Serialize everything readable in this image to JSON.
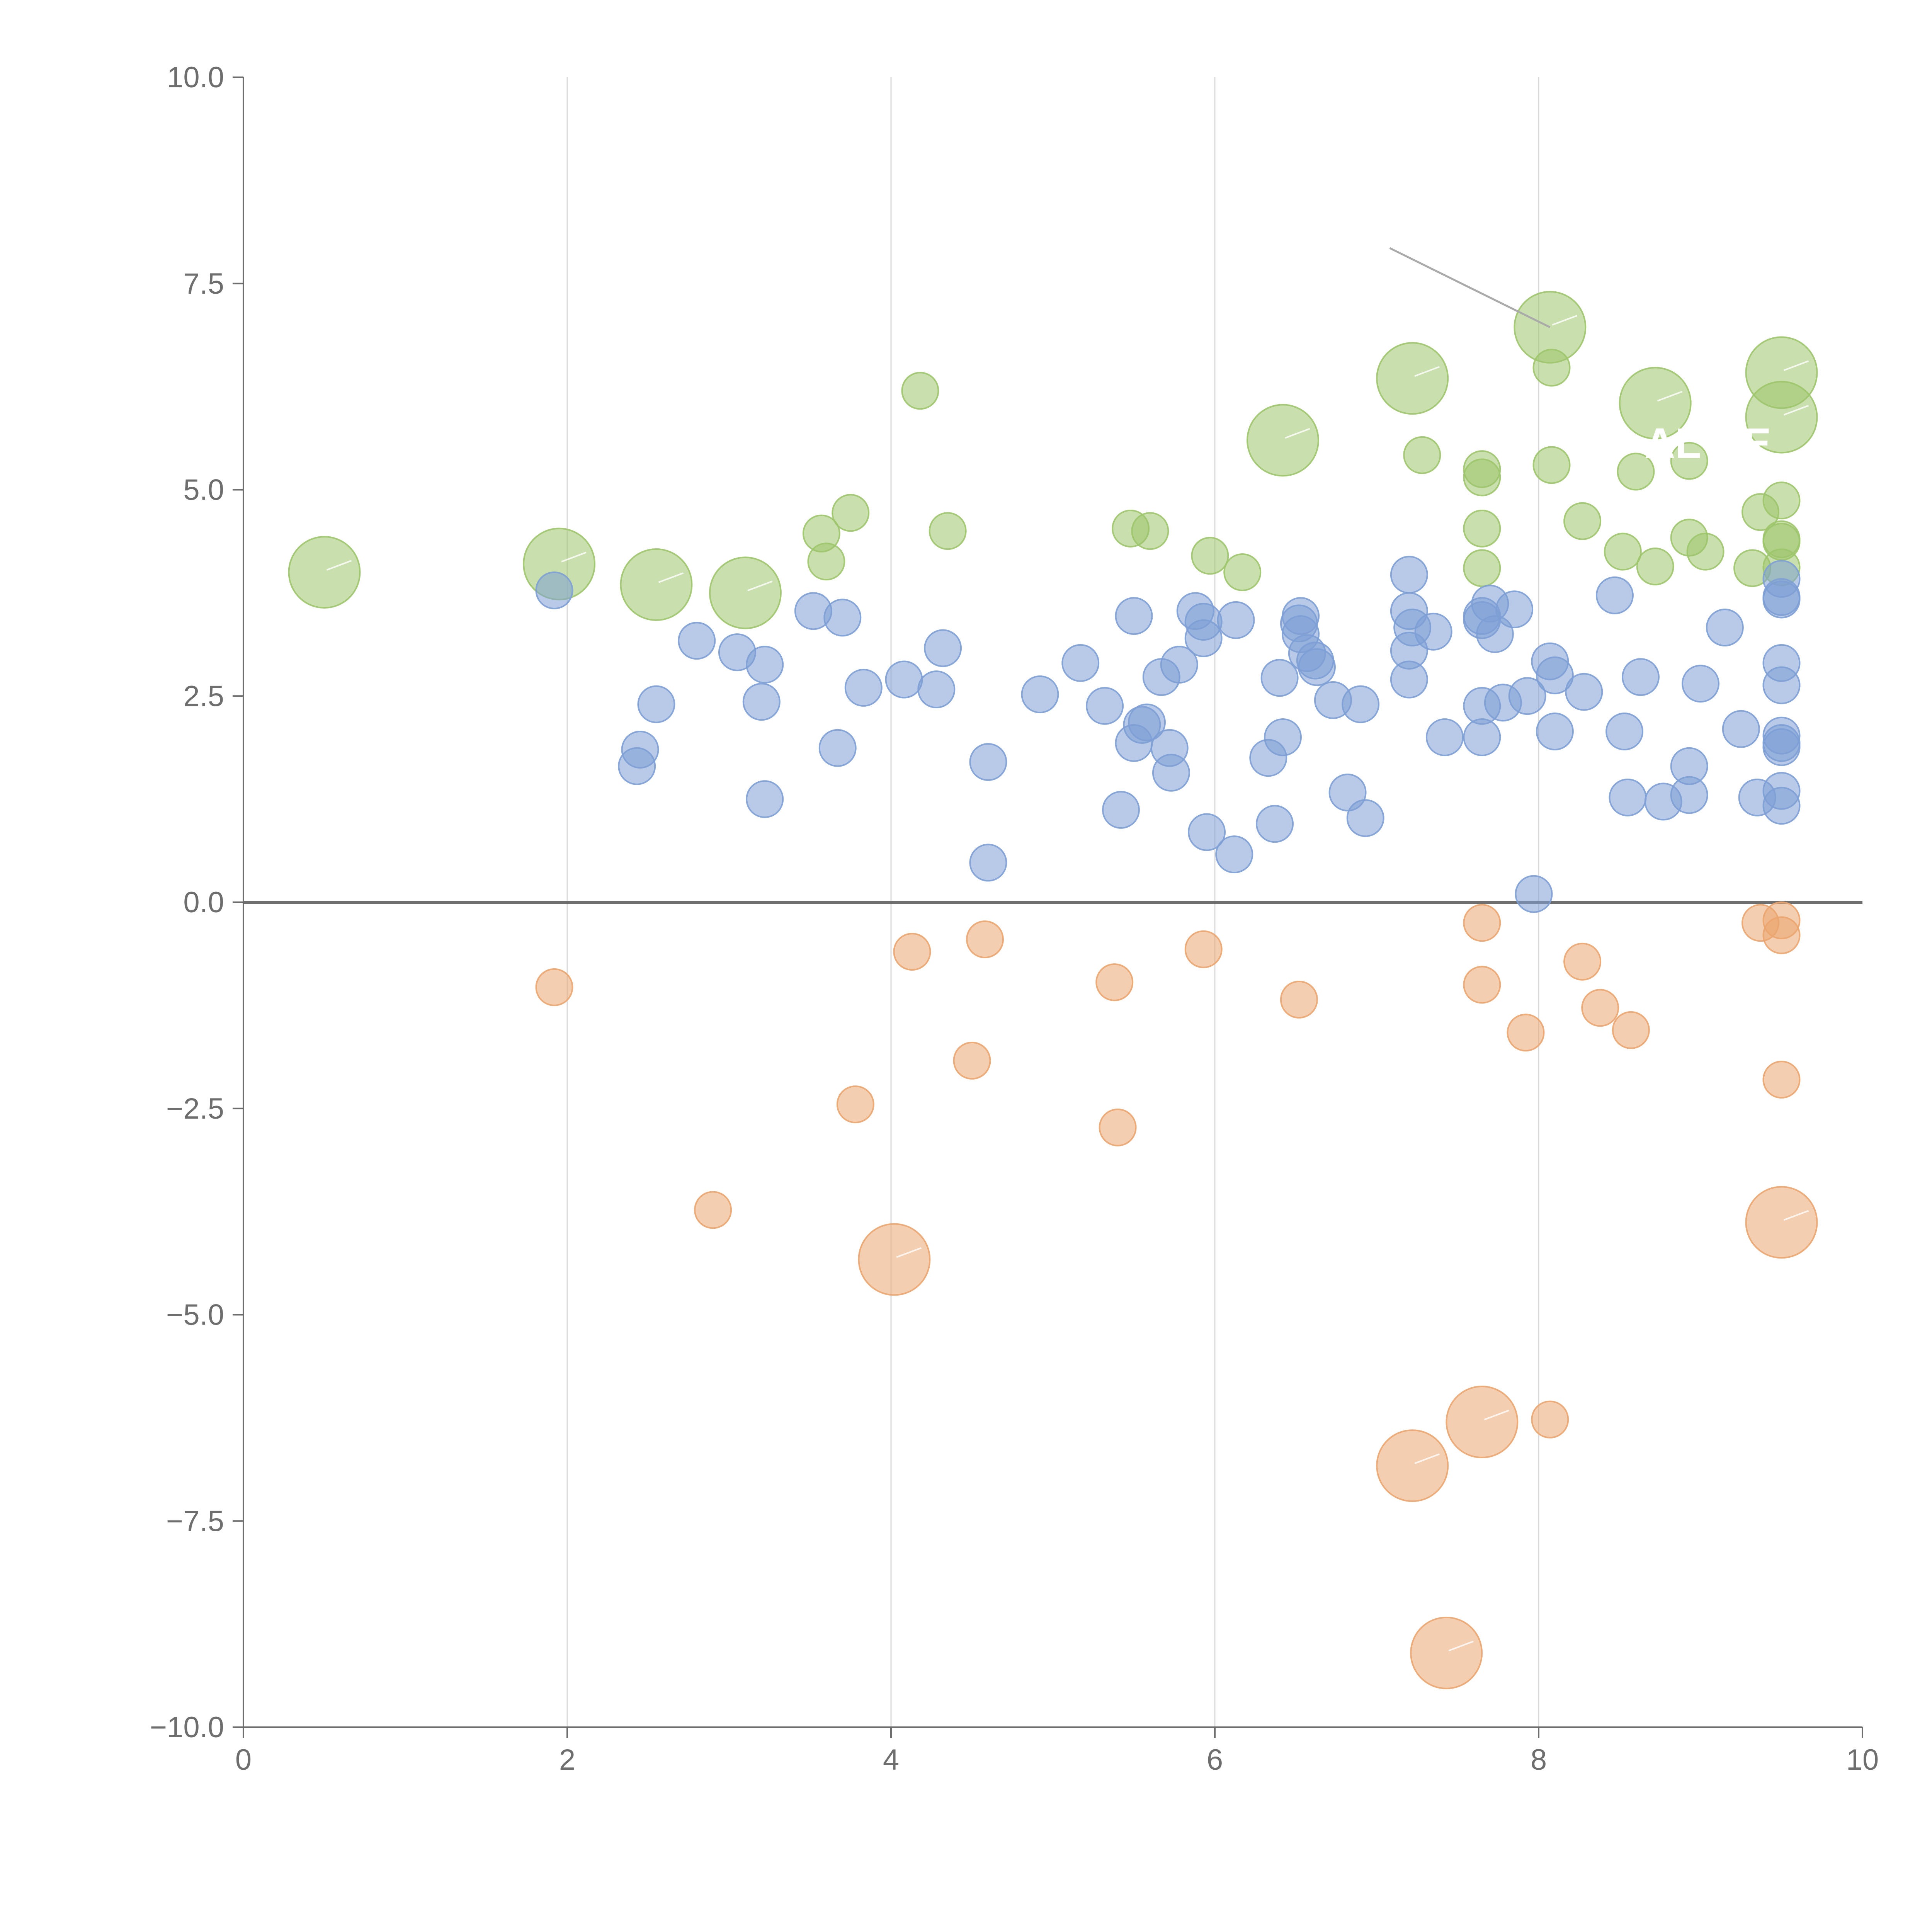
{
  "chart_data": {
    "type": "scatter",
    "variant": "bubble",
    "title": "",
    "xlabel": "",
    "ylabel": "",
    "xlim": [
      0,
      10
    ],
    "ylim": [
      -10,
      10
    ],
    "x_ticks": [
      0,
      2,
      4,
      6,
      8,
      10
    ],
    "x_tick_labels": [
      "0",
      "2",
      "4",
      "6",
      "8",
      "10"
    ],
    "y_ticks": [
      -10,
      -7.5,
      -5,
      -2.5,
      0,
      2.5,
      5,
      7.5,
      10
    ],
    "y_tick_labels": [
      "−10.0",
      "−7.5",
      "−5.0",
      "−2.5",
      "0.0",
      "2.5",
      "5.0",
      "7.5",
      "10.0"
    ],
    "vertical_grid": [
      2,
      4,
      6,
      8
    ],
    "zero_line": 0,
    "label_texts": [
      "AL CE"
    ],
    "series": [
      {
        "name": "green",
        "color": "#9dc56b",
        "points": [
          {
            "x": 0.5,
            "y": 4.0,
            "s": 3
          },
          {
            "x": 1.95,
            "y": 4.1,
            "s": 3
          },
          {
            "x": 2.55,
            "y": 3.85,
            "s": 3
          },
          {
            "x": 3.1,
            "y": 3.75,
            "s": 3
          },
          {
            "x": 6.42,
            "y": 5.6,
            "s": 3
          },
          {
            "x": 7.22,
            "y": 6.35,
            "s": 3
          },
          {
            "x": 8.07,
            "y": 6.97,
            "s": 3
          },
          {
            "x": 8.72,
            "y": 6.05,
            "s": 3
          },
          {
            "x": 9.5,
            "y": 6.42,
            "s": 3
          },
          {
            "x": 9.5,
            "y": 5.88,
            "s": 3
          },
          {
            "x": 4.18,
            "y": 6.2,
            "s": 1
          },
          {
            "x": 3.75,
            "y": 4.72,
            "s": 1
          },
          {
            "x": 3.57,
            "y": 4.47,
            "s": 1
          },
          {
            "x": 3.6,
            "y": 4.13,
            "s": 1
          },
          {
            "x": 4.35,
            "y": 4.5,
            "s": 1
          },
          {
            "x": 5.48,
            "y": 4.53,
            "s": 1
          },
          {
            "x": 5.6,
            "y": 4.5,
            "s": 1
          },
          {
            "x": 5.97,
            "y": 4.2,
            "s": 1
          },
          {
            "x": 6.17,
            "y": 4.0,
            "s": 1
          },
          {
            "x": 7.28,
            "y": 5.42,
            "s": 1
          },
          {
            "x": 7.65,
            "y": 5.25,
            "s": 1
          },
          {
            "x": 7.65,
            "y": 5.15,
            "s": 1
          },
          {
            "x": 7.65,
            "y": 4.53,
            "s": 1
          },
          {
            "x": 7.65,
            "y": 4.05,
            "s": 1
          },
          {
            "x": 8.08,
            "y": 6.48,
            "s": 1
          },
          {
            "x": 8.08,
            "y": 5.3,
            "s": 1
          },
          {
            "x": 8.27,
            "y": 4.62,
            "s": 1
          },
          {
            "x": 8.52,
            "y": 4.25,
            "s": 1
          },
          {
            "x": 8.6,
            "y": 5.22,
            "s": 1
          },
          {
            "x": 8.72,
            "y": 4.07,
            "s": 1
          },
          {
            "x": 8.93,
            "y": 5.35,
            "s": 1
          },
          {
            "x": 8.93,
            "y": 4.42,
            "s": 1
          },
          {
            "x": 9.03,
            "y": 4.25,
            "s": 1
          },
          {
            "x": 9.32,
            "y": 4.05,
            "s": 1
          },
          {
            "x": 9.37,
            "y": 4.73,
            "s": 1
          },
          {
            "x": 9.5,
            "y": 4.87,
            "s": 1
          },
          {
            "x": 9.5,
            "y": 4.4,
            "s": 1
          },
          {
            "x": 9.5,
            "y": 4.37,
            "s": 1
          },
          {
            "x": 9.5,
            "y": 4.06,
            "s": 1
          }
        ]
      },
      {
        "name": "blue",
        "color": "#7d9fd5",
        "points": [
          {
            "x": 1.92,
            "y": 3.78,
            "s": 1
          },
          {
            "x": 2.45,
            "y": 1.85,
            "s": 1
          },
          {
            "x": 2.43,
            "y": 1.65,
            "s": 1
          },
          {
            "x": 2.55,
            "y": 2.4,
            "s": 1
          },
          {
            "x": 2.8,
            "y": 3.17,
            "s": 1
          },
          {
            "x": 3.05,
            "y": 3.03,
            "s": 1
          },
          {
            "x": 3.22,
            "y": 2.88,
            "s": 1
          },
          {
            "x": 3.2,
            "y": 2.43,
            "s": 1
          },
          {
            "x": 3.22,
            "y": 1.25,
            "s": 1
          },
          {
            "x": 3.52,
            "y": 3.53,
            "s": 1
          },
          {
            "x": 3.7,
            "y": 3.45,
            "s": 1
          },
          {
            "x": 3.67,
            "y": 1.87,
            "s": 1
          },
          {
            "x": 3.83,
            "y": 2.6,
            "s": 1
          },
          {
            "x": 4.08,
            "y": 2.7,
            "s": 1
          },
          {
            "x": 4.28,
            "y": 2.58,
            "s": 1
          },
          {
            "x": 4.32,
            "y": 3.08,
            "s": 1
          },
          {
            "x": 4.6,
            "y": 1.7,
            "s": 1
          },
          {
            "x": 4.6,
            "y": 0.48,
            "s": 1
          },
          {
            "x": 4.92,
            "y": 2.52,
            "s": 1
          },
          {
            "x": 5.17,
            "y": 2.9,
            "s": 1
          },
          {
            "x": 5.32,
            "y": 2.38,
            "s": 1
          },
          {
            "x": 5.42,
            "y": 1.12,
            "s": 1
          },
          {
            "x": 5.5,
            "y": 3.47,
            "s": 1
          },
          {
            "x": 5.5,
            "y": 1.93,
            "s": 1
          },
          {
            "x": 5.55,
            "y": 2.15,
            "s": 1
          },
          {
            "x": 5.58,
            "y": 2.18,
            "s": 1
          },
          {
            "x": 5.67,
            "y": 2.73,
            "s": 1
          },
          {
            "x": 5.72,
            "y": 1.87,
            "s": 1
          },
          {
            "x": 5.73,
            "y": 1.57,
            "s": 1
          },
          {
            "x": 5.78,
            "y": 2.88,
            "s": 1
          },
          {
            "x": 5.88,
            "y": 3.53,
            "s": 1
          },
          {
            "x": 5.93,
            "y": 3.4,
            "s": 1
          },
          {
            "x": 5.93,
            "y": 3.2,
            "s": 1
          },
          {
            "x": 5.95,
            "y": 0.85,
            "s": 1
          },
          {
            "x": 6.13,
            "y": 3.42,
            "s": 1
          },
          {
            "x": 6.12,
            "y": 0.58,
            "s": 1
          },
          {
            "x": 6.33,
            "y": 1.75,
            "s": 1
          },
          {
            "x": 6.37,
            "y": 0.95,
            "s": 1
          },
          {
            "x": 6.4,
            "y": 2.72,
            "s": 1
          },
          {
            "x": 6.42,
            "y": 2.0,
            "s": 1
          },
          {
            "x": 6.53,
            "y": 3.47,
            "s": 1
          },
          {
            "x": 6.52,
            "y": 3.38,
            "s": 1
          },
          {
            "x": 6.53,
            "y": 3.25,
            "s": 1
          },
          {
            "x": 6.57,
            "y": 3.02,
            "s": 1
          },
          {
            "x": 6.62,
            "y": 2.93,
            "s": 1
          },
          {
            "x": 6.63,
            "y": 2.85,
            "s": 1
          },
          {
            "x": 6.73,
            "y": 2.45,
            "s": 1
          },
          {
            "x": 6.82,
            "y": 1.33,
            "s": 1
          },
          {
            "x": 6.9,
            "y": 2.4,
            "s": 1
          },
          {
            "x": 6.93,
            "y": 1.02,
            "s": 1
          },
          {
            "x": 7.2,
            "y": 3.97,
            "s": 1
          },
          {
            "x": 7.2,
            "y": 3.53,
            "s": 1
          },
          {
            "x": 7.22,
            "y": 3.33,
            "s": 1
          },
          {
            "x": 7.2,
            "y": 3.05,
            "s": 1
          },
          {
            "x": 7.2,
            "y": 2.7,
            "s": 1
          },
          {
            "x": 7.35,
            "y": 3.28,
            "s": 1
          },
          {
            "x": 7.42,
            "y": 2.0,
            "s": 1
          },
          {
            "x": 7.65,
            "y": 3.47,
            "s": 1
          },
          {
            "x": 7.65,
            "y": 3.42,
            "s": 1
          },
          {
            "x": 7.65,
            "y": 2.38,
            "s": 1
          },
          {
            "x": 7.65,
            "y": 2.0,
            "s": 1
          },
          {
            "x": 7.7,
            "y": 3.62,
            "s": 1
          },
          {
            "x": 7.73,
            "y": 3.25,
            "s": 1
          },
          {
            "x": 7.78,
            "y": 2.42,
            "s": 1
          },
          {
            "x": 7.85,
            "y": 3.55,
            "s": 1
          },
          {
            "x": 7.93,
            "y": 2.5,
            "s": 1
          },
          {
            "x": 7.97,
            "y": 0.1,
            "s": 1
          },
          {
            "x": 8.07,
            "y": 2.92,
            "s": 1
          },
          {
            "x": 8.1,
            "y": 2.75,
            "s": 1
          },
          {
            "x": 8.1,
            "y": 2.07,
            "s": 1
          },
          {
            "x": 8.28,
            "y": 2.55,
            "s": 1
          },
          {
            "x": 8.47,
            "y": 3.72,
            "s": 1
          },
          {
            "x": 8.53,
            "y": 2.07,
            "s": 1
          },
          {
            "x": 8.55,
            "y": 1.27,
            "s": 1
          },
          {
            "x": 8.63,
            "y": 2.73,
            "s": 1
          },
          {
            "x": 8.77,
            "y": 1.22,
            "s": 1
          },
          {
            "x": 8.93,
            "y": 1.65,
            "s": 1
          },
          {
            "x": 8.93,
            "y": 1.3,
            "s": 1
          },
          {
            "x": 9.0,
            "y": 2.65,
            "s": 1
          },
          {
            "x": 9.15,
            "y": 3.33,
            "s": 1
          },
          {
            "x": 9.25,
            "y": 2.1,
            "s": 1
          },
          {
            "x": 9.35,
            "y": 1.27,
            "s": 1
          },
          {
            "x": 9.5,
            "y": 3.92,
            "s": 1
          },
          {
            "x": 9.5,
            "y": 3.7,
            "s": 1
          },
          {
            "x": 9.5,
            "y": 3.67,
            "s": 1
          },
          {
            "x": 9.5,
            "y": 2.9,
            "s": 1
          },
          {
            "x": 9.5,
            "y": 2.63,
            "s": 1
          },
          {
            "x": 9.5,
            "y": 2.02,
            "s": 1
          },
          {
            "x": 9.5,
            "y": 1.93,
            "s": 1
          },
          {
            "x": 9.5,
            "y": 1.88,
            "s": 1
          },
          {
            "x": 9.5,
            "y": 1.35,
            "s": 1
          },
          {
            "x": 9.5,
            "y": 1.17,
            "s": 1
          }
        ]
      },
      {
        "name": "orange",
        "color": "#eba56f",
        "points": [
          {
            "x": 1.92,
            "y": -1.03,
            "s": 1
          },
          {
            "x": 2.9,
            "y": -3.73,
            "s": 1
          },
          {
            "x": 3.78,
            "y": -2.45,
            "s": 1
          },
          {
            "x": 4.13,
            "y": -0.6,
            "s": 1
          },
          {
            "x": 4.5,
            "y": -1.92,
            "s": 1
          },
          {
            "x": 4.58,
            "y": -0.45,
            "s": 1
          },
          {
            "x": 5.38,
            "y": -0.97,
            "s": 1
          },
          {
            "x": 5.4,
            "y": -2.73,
            "s": 1
          },
          {
            "x": 5.93,
            "y": -0.57,
            "s": 1
          },
          {
            "x": 6.52,
            "y": -1.18,
            "s": 1
          },
          {
            "x": 7.65,
            "y": -0.25,
            "s": 1
          },
          {
            "x": 7.65,
            "y": -1.0,
            "s": 1
          },
          {
            "x": 7.92,
            "y": -1.58,
            "s": 1
          },
          {
            "x": 8.07,
            "y": -6.27,
            "s": 1
          },
          {
            "x": 8.27,
            "y": -0.72,
            "s": 1
          },
          {
            "x": 8.38,
            "y": -1.28,
            "s": 1
          },
          {
            "x": 8.57,
            "y": -1.55,
            "s": 1
          },
          {
            "x": 9.37,
            "y": -0.25,
            "s": 1
          },
          {
            "x": 9.5,
            "y": -0.22,
            "s": 1
          },
          {
            "x": 9.5,
            "y": -0.4,
            "s": 1
          },
          {
            "x": 9.5,
            "y": -2.15,
            "s": 1
          },
          {
            "x": 4.02,
            "y": -4.33,
            "s": 3
          },
          {
            "x": 7.22,
            "y": -6.83,
            "s": 3
          },
          {
            "x": 7.65,
            "y": -6.3,
            "s": 3
          },
          {
            "x": 7.43,
            "y": -9.1,
            "s": 3
          },
          {
            "x": 9.5,
            "y": -3.88,
            "s": 3
          }
        ]
      }
    ]
  }
}
